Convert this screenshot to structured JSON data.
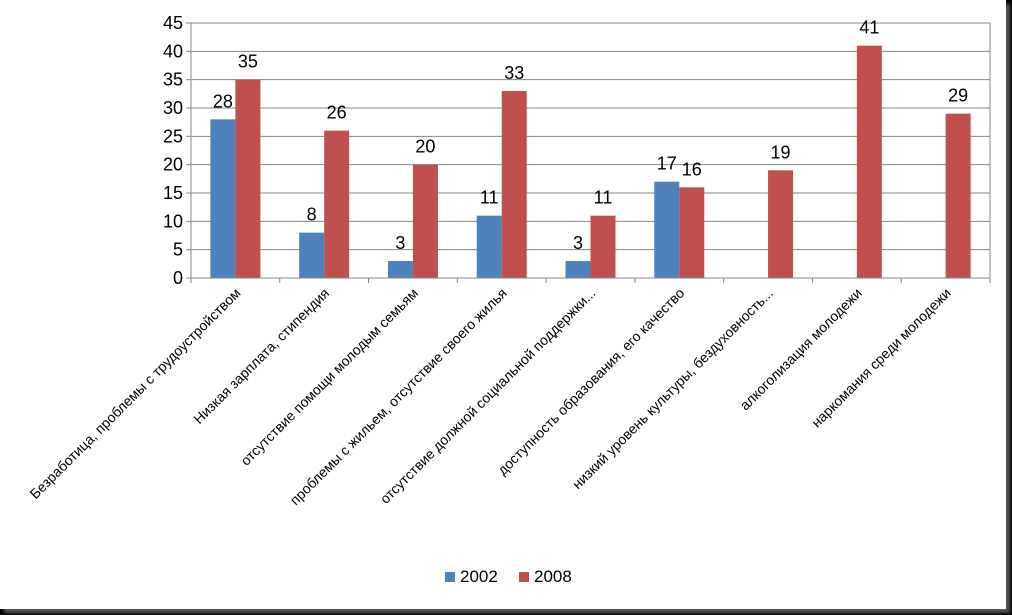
{
  "chart_data": {
    "type": "bar",
    "categories": [
      "Безработица, проблемы с трудоустройством",
      "Низкая зарплата, стипендия",
      "отсутствие помощи молодым семьям",
      "проблемы с жильем, отсутствие своего жилья",
      "отсутствие должной социальной поддержки...",
      "доступность образования, его качество",
      "низкий уровень культуры, бездуховность...",
      "алкоголизация молодежи",
      "наркомания среди молодежи"
    ],
    "series": [
      {
        "name": "2002",
        "color": "#4F81BD",
        "values": [
          28,
          8,
          3,
          11,
          3,
          17,
          null,
          null,
          null
        ]
      },
      {
        "name": "2008",
        "color": "#C0504D",
        "values": [
          35,
          26,
          20,
          33,
          11,
          16,
          19,
          41,
          29
        ]
      }
    ],
    "y_ticks": [
      "0",
      "5",
      "10",
      "15",
      "20",
      "25",
      "30",
      "35",
      "40",
      "45"
    ],
    "ylim": [
      0,
      45
    ],
    "grid": true,
    "legend_position": "bottom",
    "title": "",
    "xlabel": "",
    "ylabel": ""
  }
}
